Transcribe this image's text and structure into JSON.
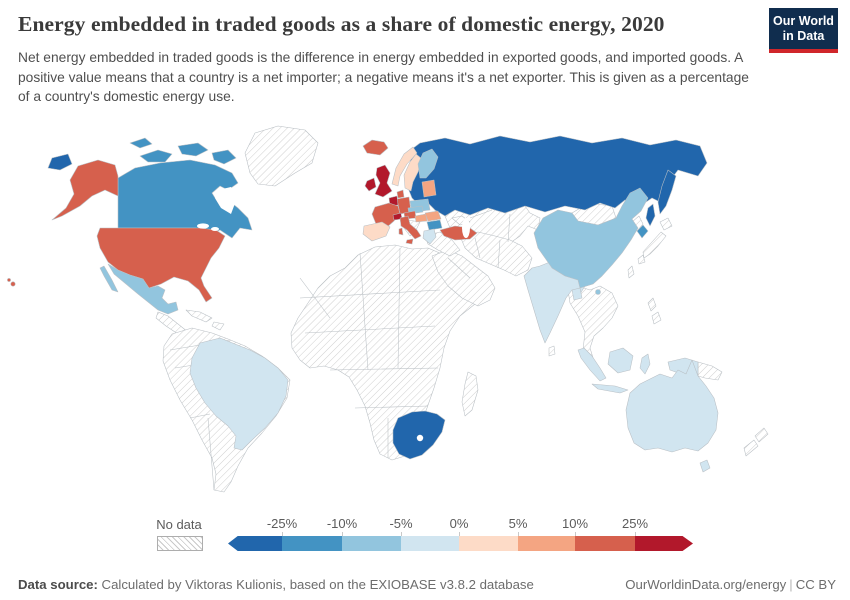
{
  "header": {
    "title": "Energy embedded in traded goods as a share of domestic energy, 2020",
    "subtitle": "Net energy embedded in traded goods is the difference in energy embedded in exported goods, and imported goods. A positive value means that a country is a net importer; a negative means it's a net exporter. This is given as a percentage of a country's domestic energy use.",
    "logo": {
      "line1": "Our World",
      "line2": "in Data",
      "bg_color": "#102d4e",
      "accent_color": "#d0262a"
    }
  },
  "legend": {
    "no_data_label": "No data",
    "ticks": [
      "-25%",
      "-10%",
      "-5%",
      "0%",
      "5%",
      "10%",
      "25%"
    ]
  },
  "footer": {
    "source_label": "Data source:",
    "source_text": " Calculated by Viktoras Kulionis, based on the EXIOBASE v3.8.2 database",
    "site": "OurWorldinData.org/energy",
    "license": "CC BY"
  },
  "chart_data": {
    "type": "choropleth",
    "title": "Energy embedded in traded goods as a share of domestic energy, 2020",
    "unit": "% of domestic energy use",
    "legend_position": "bottom",
    "bins": [
      "< -25%",
      "-25% to -10%",
      "-10% to -5%",
      "-5% to 0%",
      "0% to 5%",
      "5% to 10%",
      "10% to 25%",
      "> 25%"
    ],
    "bin_colors": [
      "#2166ac",
      "#4393c3",
      "#92c5de",
      "#d1e5f0",
      "#fddbc7",
      "#f4a582",
      "#d6604d",
      "#b2182b"
    ],
    "no_data_style": "diagonal-hatch",
    "countries": {
      "Russia": "< -25%",
      "South Africa": "< -25%",
      "Canada": "-25% to -10%",
      "South Korea": "-25% to -10%",
      "Bulgaria": "-25% to -10%",
      "Mexico": "-10% to -5%",
      "China": "-10% to -5%",
      "Finland": "-10% to -5%",
      "Poland": "-10% to -5%",
      "Czechia & Slovakia": "-10% to -5%",
      "Greece": "-5% to 0%",
      "Brazil": "-5% to 0%",
      "India": "-5% to 0%",
      "Bangladesh": "-5% to 0%",
      "Australia": "-5% to 0%",
      "Indonesia": "-5% to 0%",
      "Norway": "0% to 5%",
      "Sweden": "0% to 5%",
      "Spain & Portugal": "0% to 5%",
      "Baltic states": "5% to 10%",
      "Hungary": "5% to 10%",
      "Romania": "5% to 10%",
      "United States": "10% to 25%",
      "France": "10% to 25%",
      "Germany": "10% to 25%",
      "Italy": "10% to 25%",
      "Austria": "10% to 25%",
      "Denmark": "10% to 25%",
      "Turkey": "10% to 25%",
      "Iceland": "10% to 25%",
      "United Kingdom": "> 25%",
      "Ireland": "> 25%",
      "Benelux": "> 25%",
      "Switzerland": "> 25%",
      "Greenland": "No data",
      "Central America": "No data",
      "Caribbean": "No data",
      "South America (other)": "No data",
      "Africa (other)": "No data",
      "Madagascar": "No data",
      "Central Asia": "No data",
      "Middle East": "No data",
      "Mongolia": "No data",
      "North Korea": "No data",
      "Japan": "No data",
      "Taiwan": "No data",
      "Southeast Asia": "No data",
      "Philippines": "No data",
      "Sri Lanka": "No data",
      "Papua New Guinea": "No data",
      "New Zealand": "No data",
      "Ukraine": "No data",
      "Belarus": "No data",
      "Balkans": "No data",
      "Caucasus": "No data"
    }
  }
}
